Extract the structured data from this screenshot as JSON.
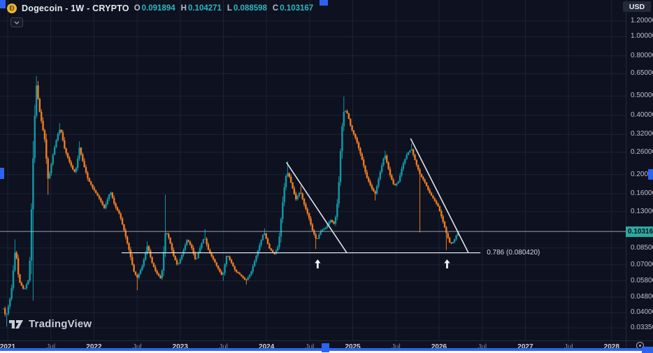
{
  "header": {
    "title": "Dogecoin - 1W - CRYPTO",
    "ohlc": [
      {
        "label": "O",
        "value": "0.091894"
      },
      {
        "label": "H",
        "value": "0.104271"
      },
      {
        "label": "L",
        "value": "0.088598"
      },
      {
        "label": "C",
        "value": "0.103167"
      }
    ]
  },
  "currency_button": {
    "label": "USD"
  },
  "watermark": {
    "logo_text": "TradingView"
  },
  "price_scale": {
    "ticks": [
      "1.200000",
      "1.000000",
      "0.800000",
      "0.650000",
      "0.500000",
      "0.400000",
      "0.320000",
      "0.260000",
      "0.200000",
      "0.160000",
      "0.130000",
      "0.085000",
      "0.070000",
      "0.058000",
      "0.048000",
      "0.040000",
      "0.033500"
    ],
    "last_price_label": "0.103167"
  },
  "time_scale": {
    "ticks": [
      {
        "label": "2021",
        "t": 2021,
        "minor": false
      },
      {
        "label": "Jul",
        "t": 2021.5,
        "minor": true
      },
      {
        "label": "2022",
        "t": 2022,
        "minor": false
      },
      {
        "label": "Jul",
        "t": 2022.5,
        "minor": true
      },
      {
        "label": "2023",
        "t": 2023,
        "minor": false
      },
      {
        "label": "Jul",
        "t": 2023.5,
        "minor": true
      },
      {
        "label": "2024",
        "t": 2024,
        "minor": false
      },
      {
        "label": "Jul",
        "t": 2024.5,
        "minor": true
      },
      {
        "label": "2025",
        "t": 2025,
        "minor": false
      },
      {
        "label": "Jul",
        "t": 2025.5,
        "minor": true
      },
      {
        "label": "2026",
        "t": 2026,
        "minor": false
      },
      {
        "label": "Jul",
        "t": 2026.5,
        "minor": true
      },
      {
        "label": "2027",
        "t": 2027,
        "minor": false
      },
      {
        "label": "Jul",
        "t": 2027.5,
        "minor": true
      },
      {
        "label": "2028",
        "t": 2028,
        "minor": false
      }
    ]
  },
  "colors": {
    "background": "#0d1120",
    "grid": "#1d2432",
    "up_candle": "#1398a6",
    "down_candle": "#ef7d23",
    "drawing_line": "#e2e5ea",
    "price_line": "#b6bbc6",
    "last_price_badge_bg": "#2fa89f",
    "last_price_badge_text": "#0c1423",
    "selection_handle": "#2e63f2",
    "axis_text": "#bcc1cc",
    "ohlc_text": "#2cb8c0"
  },
  "chart_data": {
    "type": "candlestick",
    "title": "Dogecoin - 1W - CRYPTO",
    "interval": "1W",
    "currency": "USD",
    "price_scale_type": "log",
    "x_start": 2020.95,
    "x_end": 2026.23,
    "week_step": 0.019157,
    "x_axis_range_years": [
      2020.95,
      2028.3
    ],
    "visible_price_range": [
      0.0335,
      1.2
    ],
    "last_bar": {
      "open": 0.091894,
      "high": 0.104271,
      "low": 0.088598,
      "close": 0.103167
    },
    "anchors": [
      [
        2020.95,
        0.042
      ],
      [
        2020.98,
        0.038,
        null,
        0.034
      ],
      [
        2021.04,
        0.05
      ],
      [
        2021.09,
        0.086,
        0.094
      ],
      [
        2021.13,
        0.058
      ],
      [
        2021.19,
        0.052
      ],
      [
        2021.25,
        0.06
      ],
      [
        2021.3,
        0.285,
        null,
        0.046
      ],
      [
        2021.33,
        0.58,
        0.625
      ],
      [
        2021.37,
        0.42
      ],
      [
        2021.43,
        0.3
      ],
      [
        2021.47,
        0.185,
        null,
        0.158
      ],
      [
        2021.53,
        0.26
      ],
      [
        2021.58,
        0.32
      ],
      [
        2021.61,
        0.345,
        0.365
      ],
      [
        2021.66,
        0.27
      ],
      [
        2021.71,
        0.235
      ],
      [
        2021.77,
        0.205
      ],
      [
        2021.8,
        0.22
      ],
      [
        2021.83,
        0.275,
        0.295
      ],
      [
        2021.88,
        0.225
      ],
      [
        2021.93,
        0.19
      ],
      [
        2021.99,
        0.17
      ],
      [
        2022.06,
        0.152
      ],
      [
        2022.12,
        0.135
      ],
      [
        2022.19,
        0.165
      ],
      [
        2022.24,
        0.14
      ],
      [
        2022.3,
        0.125
      ],
      [
        2022.36,
        0.1
      ],
      [
        2022.41,
        0.082
      ],
      [
        2022.46,
        0.065
      ],
      [
        2022.5,
        0.06,
        null,
        0.052
      ],
      [
        2022.56,
        0.069
      ],
      [
        2022.62,
        0.088,
        0.092
      ],
      [
        2022.67,
        0.072
      ],
      [
        2022.72,
        0.064
      ],
      [
        2022.78,
        0.059
      ],
      [
        2022.83,
        0.104,
        0.158
      ],
      [
        2022.87,
        0.095
      ],
      [
        2022.92,
        0.078
      ],
      [
        2022.97,
        0.069
      ],
      [
        2023.03,
        0.081
      ],
      [
        2023.08,
        0.094
      ],
      [
        2023.13,
        0.086
      ],
      [
        2023.18,
        0.073
      ],
      [
        2023.24,
        0.088
      ],
      [
        2023.28,
        0.097,
        0.106
      ],
      [
        2023.33,
        0.082
      ],
      [
        2023.38,
        0.075
      ],
      [
        2023.43,
        0.068
      ],
      [
        2023.49,
        0.061,
        null,
        0.058
      ],
      [
        2023.54,
        0.079
      ],
      [
        2023.59,
        0.072
      ],
      [
        2023.64,
        0.065
      ],
      [
        2023.7,
        0.062
      ],
      [
        2023.76,
        0.058,
        null,
        0.0555
      ],
      [
        2023.82,
        0.064
      ],
      [
        2023.87,
        0.075
      ],
      [
        2023.92,
        0.088
      ],
      [
        2023.97,
        0.103,
        0.107
      ],
      [
        2024.03,
        0.085
      ],
      [
        2024.09,
        0.079
      ],
      [
        2024.14,
        0.088
      ],
      [
        2024.18,
        0.135
      ],
      [
        2024.22,
        0.195
      ],
      [
        2024.25,
        0.205,
        0.234
      ],
      [
        2024.3,
        0.172
      ],
      [
        2024.34,
        0.15
      ],
      [
        2024.39,
        0.165,
        0.175
      ],
      [
        2024.44,
        0.14
      ],
      [
        2024.49,
        0.122
      ],
      [
        2024.53,
        0.105
      ],
      [
        2024.58,
        0.093,
        null,
        0.084
      ],
      [
        2024.63,
        0.104
      ],
      [
        2024.69,
        0.108
      ],
      [
        2024.74,
        0.118
      ],
      [
        2024.79,
        0.112
      ],
      [
        2024.83,
        0.155
      ],
      [
        2024.87,
        0.33
      ],
      [
        2024.9,
        0.43,
        0.497
      ],
      [
        2024.94,
        0.405
      ],
      [
        2024.98,
        0.345
      ],
      [
        2025.04,
        0.3
      ],
      [
        2025.1,
        0.245
      ],
      [
        2025.16,
        0.195
      ],
      [
        2025.22,
        0.17
      ],
      [
        2025.26,
        0.16,
        null,
        0.148
      ],
      [
        2025.31,
        0.2
      ],
      [
        2025.37,
        0.255,
        0.265
      ],
      [
        2025.43,
        0.2
      ],
      [
        2025.48,
        0.175
      ],
      [
        2025.53,
        0.185
      ],
      [
        2025.58,
        0.225
      ],
      [
        2025.63,
        0.255
      ],
      [
        2025.68,
        0.27,
        0.288
      ],
      [
        2025.73,
        0.23
      ],
      [
        2025.78,
        0.2,
        null,
        0.102
      ],
      [
        2025.83,
        0.185
      ],
      [
        2025.88,
        0.165
      ],
      [
        2025.93,
        0.152
      ],
      [
        2025.99,
        0.138
      ],
      [
        2026.04,
        0.118
      ],
      [
        2026.09,
        0.099,
        null,
        0.083
      ],
      [
        2026.13,
        0.089
      ],
      [
        2026.17,
        0.092
      ],
      [
        2026.22,
        0.103167
      ]
    ],
    "drawings": {
      "trendlines": [
        {
          "t1": 2024.23,
          "p1": 0.231,
          "t2": 2024.93,
          "p2": 0.0804
        },
        {
          "t1": 2025.67,
          "p1": 0.305,
          "t2": 2026.34,
          "p2": 0.0804
        }
      ],
      "horizontal_line": {
        "t1": 2022.32,
        "t2": 2026.48,
        "price": 0.08042,
        "label": "0.786 (0.080420)"
      },
      "arrows": [
        {
          "t": 2024.593,
          "tip_price": 0.0745
        },
        {
          "t": 2026.093,
          "tip_price": 0.0745
        }
      ],
      "price_line": {
        "price": 0.103167
      }
    }
  }
}
